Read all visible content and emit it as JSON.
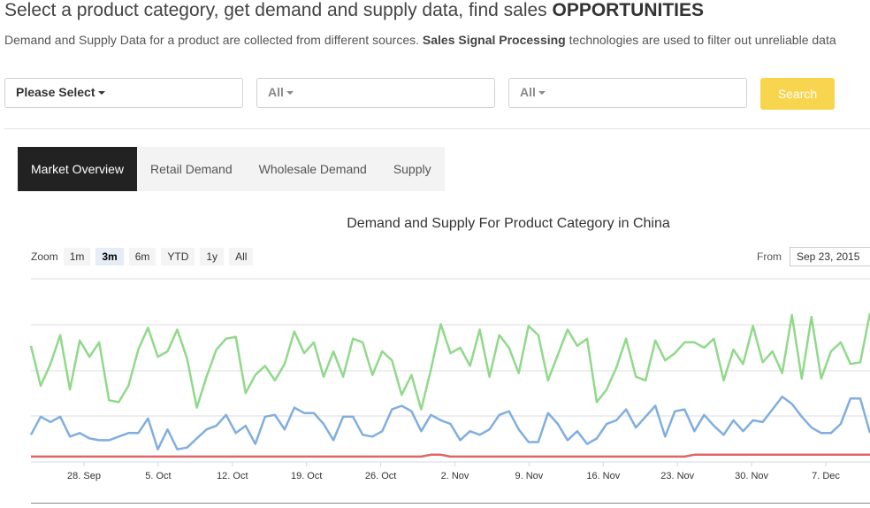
{
  "header": {
    "title_pre": "Select a product category, get demand and supply data, find sales ",
    "title_bold": "OPPORTUNITIES",
    "sub_pre": "Demand and Supply Data for a product are collected from different sources. ",
    "sub_bold": "Sales Signal Processing",
    "sub_post": " technologies are used to filter out unreliable data"
  },
  "filters": {
    "category": "Please Select",
    "filter2": "All",
    "filter3": "All",
    "search_label": "Search"
  },
  "tabs": [
    "Market Overview",
    "Retail Demand",
    "Wholesale Demand",
    "Supply"
  ],
  "chart": {
    "zoom_label": "Zoom",
    "zoom_buttons": [
      "1m",
      "3m",
      "6m",
      "YTD",
      "1y",
      "All"
    ],
    "from_label": "From",
    "from_value": "Sep 23, 2015"
  },
  "chart_data": {
    "type": "line",
    "title": "Demand and Supply For Product Category in China",
    "x_tick_labels": [
      "28. Sep",
      "5. Oct",
      "12. Oct",
      "19. Oct",
      "26. Oct",
      "2. Nov",
      "9. Nov",
      "16. Nov",
      "23. Nov",
      "30. Nov",
      "7. Dec"
    ],
    "x_start": "Sep 23, 2015",
    "grid": true,
    "series": [
      {
        "color": "#90d98a",
        "values": [
          0.63,
          0.41,
          0.53,
          0.69,
          0.39,
          0.66,
          0.57,
          0.65,
          0.33,
          0.32,
          0.41,
          0.61,
          0.73,
          0.57,
          0.6,
          0.72,
          0.56,
          0.29,
          0.46,
          0.61,
          0.67,
          0.68,
          0.37,
          0.47,
          0.52,
          0.44,
          0.53,
          0.71,
          0.59,
          0.65,
          0.46,
          0.6,
          0.46,
          0.67,
          0.65,
          0.47,
          0.6,
          0.55,
          0.36,
          0.47,
          0.28,
          0.5,
          0.75,
          0.59,
          0.62,
          0.52,
          0.72,
          0.46,
          0.69,
          0.62,
          0.48,
          0.74,
          0.69,
          0.44,
          0.58,
          0.72,
          0.63,
          0.67,
          0.32,
          0.39,
          0.51,
          0.67,
          0.46,
          0.44,
          0.66,
          0.55,
          0.59,
          0.65,
          0.65,
          0.62,
          0.67,
          0.44,
          0.61,
          0.53,
          0.74,
          0.54,
          0.6,
          0.48,
          0.8,
          0.45,
          0.79,
          0.45,
          0.6,
          0.65,
          0.53,
          0.54,
          0.81
        ]
      },
      {
        "color": "#80aee0",
        "values": [
          0.14,
          0.24,
          0.21,
          0.24,
          0.13,
          0.15,
          0.12,
          0.11,
          0.11,
          0.13,
          0.15,
          0.15,
          0.23,
          0.06,
          0.17,
          0.06,
          0.07,
          0.12,
          0.17,
          0.19,
          0.25,
          0.15,
          0.19,
          0.09,
          0.24,
          0.25,
          0.17,
          0.29,
          0.26,
          0.26,
          0.2,
          0.11,
          0.24,
          0.24,
          0.14,
          0.13,
          0.16,
          0.28,
          0.3,
          0.27,
          0.16,
          0.25,
          0.22,
          0.2,
          0.11,
          0.16,
          0.14,
          0.17,
          0.25,
          0.27,
          0.17,
          0.1,
          0.1,
          0.26,
          0.2,
          0.11,
          0.16,
          0.09,
          0.12,
          0.2,
          0.22,
          0.28,
          0.18,
          0.24,
          0.3,
          0.13,
          0.27,
          0.28,
          0.16,
          0.25,
          0.19,
          0.14,
          0.22,
          0.16,
          0.22,
          0.21,
          0.28,
          0.35,
          0.31,
          0.24,
          0.18,
          0.15,
          0.15,
          0.2,
          0.34,
          0.34,
          0.15
        ]
      },
      {
        "color": "#e26464",
        "values": [
          0.02,
          0.02,
          0.02,
          0.02,
          0.02,
          0.02,
          0.02,
          0.02,
          0.02,
          0.02,
          0.02,
          0.02,
          0.02,
          0.02,
          0.02,
          0.02,
          0.02,
          0.02,
          0.02,
          0.02,
          0.02,
          0.02,
          0.02,
          0.02,
          0.02,
          0.02,
          0.02,
          0.02,
          0.02,
          0.02,
          0.02,
          0.02,
          0.02,
          0.02,
          0.02,
          0.02,
          0.02,
          0.02,
          0.02,
          0.02,
          0.02,
          0.03,
          0.03,
          0.02,
          0.02,
          0.02,
          0.02,
          0.02,
          0.02,
          0.02,
          0.02,
          0.02,
          0.02,
          0.02,
          0.02,
          0.02,
          0.02,
          0.02,
          0.02,
          0.02,
          0.02,
          0.02,
          0.02,
          0.02,
          0.02,
          0.02,
          0.02,
          0.02,
          0.03,
          0.03,
          0.03,
          0.03,
          0.03,
          0.03,
          0.03,
          0.03,
          0.03,
          0.03,
          0.03,
          0.03,
          0.03,
          0.03,
          0.03,
          0.03,
          0.03,
          0.03,
          0.03
        ]
      }
    ],
    "ylim": [
      0,
      1
    ]
  }
}
